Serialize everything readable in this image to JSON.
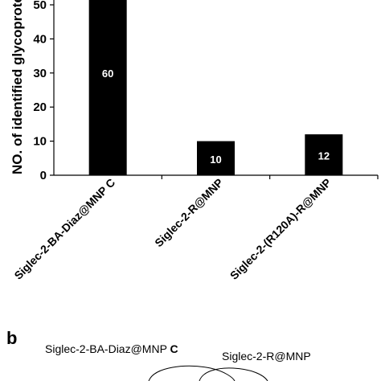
{
  "chart_data": {
    "type": "bar",
    "ylabel": "NO. of identified glycoproteins",
    "ylim": [
      0,
      50
    ],
    "yticks": [
      0,
      10,
      20,
      30,
      40,
      50
    ],
    "categories": [
      "Siglec-2-BA-Diaz@MNP",
      "Siglec-2-R@MNP",
      "Siglec-2-(R120A)-R@MNP"
    ],
    "values": [
      60,
      10,
      12
    ],
    "data_labels": [
      "60",
      "10",
      "12"
    ],
    "category_suffix": [
      "C",
      "",
      ""
    ],
    "bar_color": "#000000",
    "grid": false
  },
  "panel_b": {
    "letter": "b",
    "venn_label_1": "Siglec-2-BA-Diaz@MNP",
    "venn_label_1_suffix": "C",
    "venn_label_2": "Siglec-2-R@MNP"
  }
}
